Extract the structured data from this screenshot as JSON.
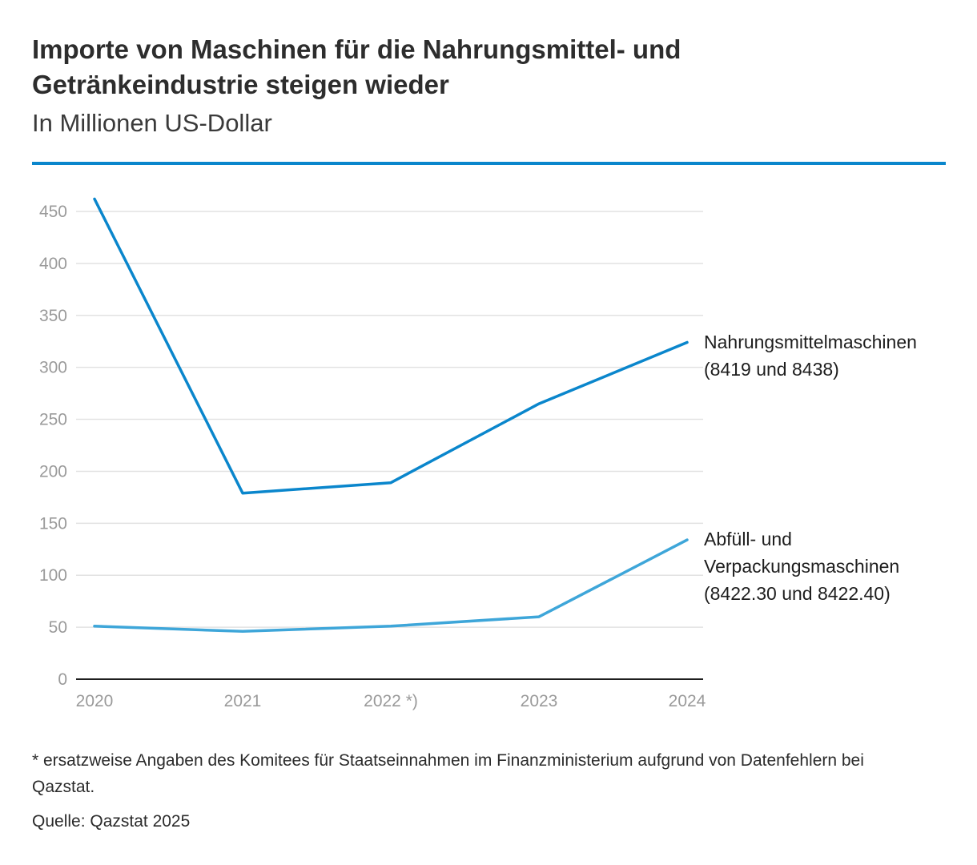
{
  "header": {
    "title": "Importe von Maschinen für die Nahrungsmittel- und Getränkeindustrie steigen wieder",
    "subtitle": "In Millionen US-Dollar"
  },
  "chart_data": {
    "type": "line",
    "categories": [
      "2020",
      "2021",
      "2022 *)",
      "2023",
      "2024"
    ],
    "ylim": [
      0,
      450
    ],
    "yticks": [
      0,
      50,
      100,
      150,
      200,
      250,
      300,
      350,
      400,
      450
    ],
    "grid": true,
    "series": [
      {
        "name_lines": [
          "Nahrungsmittelmaschinen",
          "(8419 und 8438)"
        ],
        "values": [
          462,
          179,
          189,
          265,
          324
        ],
        "color": "#0a86cc"
      },
      {
        "name_lines": [
          "Abfüll- und",
          "Verpackungsmaschinen",
          "(8422.30 und 8422.40)"
        ],
        "values": [
          51,
          46,
          51,
          60,
          134
        ],
        "color": "#3ea6d9"
      }
    ]
  },
  "footer": {
    "footnote": "* ersatzweise Angaben des Komitees für Staatseinnahmen im Finanzministerium aufgrund von Datenfehlern bei Qazstat.",
    "source": "Quelle: Qazstat 2025"
  },
  "colors": {
    "accent": "#0a86cc",
    "grid": "#e2e2e2",
    "axis": "#1e1e1e"
  }
}
